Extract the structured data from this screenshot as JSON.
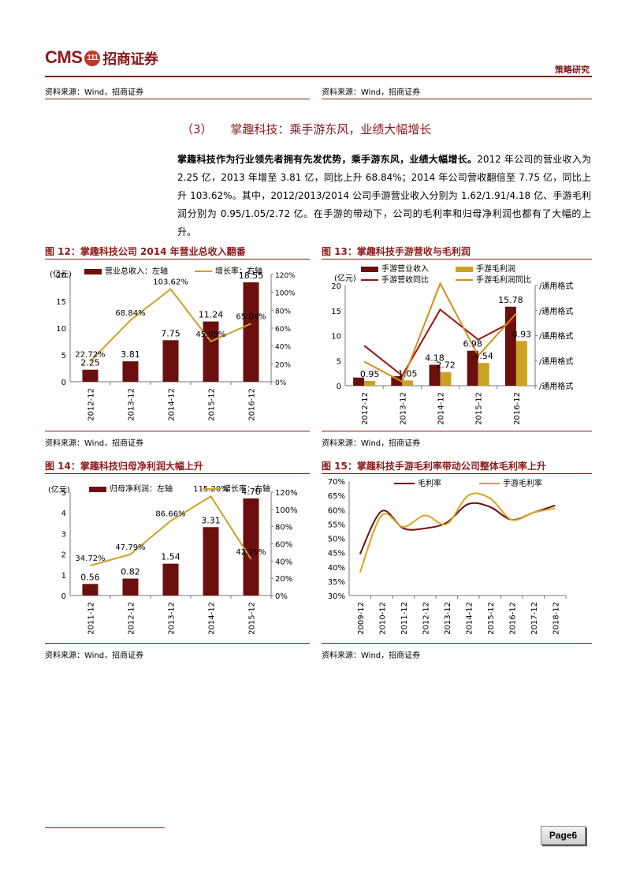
{
  "header": {
    "logo_text": "CMS",
    "logo_badge": "111",
    "logo_cn": "招商证券",
    "section": "策略研究"
  },
  "top_sources": {
    "left": "资料来源：Wind，招商证券",
    "right": "资料来源：Wind，招商证券"
  },
  "heading": {
    "num": "（3）",
    "text": "掌趣科技：乘手游东风，业绩大幅增长"
  },
  "paragraph": {
    "bold": "掌趣科技作为行业领先者拥有先发优势，乘手游东风，业绩大幅增长。",
    "body": "2012 年公司的营业收入为 2.25 亿，2013 年增至 3.81 亿，同比上升 68.84%；2014 年公司营收翻倍至 7.75 亿，同比上升 103.62%。其中，2012/2013/2014 公司手游营业收入分别为 1.62/1.91/4.18 亿、手游毛利润分别为 0.95/1.05/2.72 亿。在手游的带动下，公司的毛利率和归母净利润也都有了大幅的上升。"
  },
  "fig12": {
    "title": "图 12：掌趣科技公司 2014 年营业总收入翻番",
    "source": "资料来源：Wind，招商证券"
  },
  "fig13": {
    "title": "图 13：掌趣科技手游营收与毛利润",
    "source": "资料来源：Wind，招商证券"
  },
  "fig14": {
    "title": "图 14：掌趣科技归母净利润大幅上升",
    "source": "资料来源：Wind，招商证券"
  },
  "fig15": {
    "title": "图 15：掌趣科技手游毛利率带动公司整体毛利率上升",
    "source": "资料来源：Wind，招商证券"
  },
  "page": "Page6",
  "chart_data": [
    {
      "id": "fig12",
      "type": "bar",
      "categories": [
        "2012-12",
        "2013-12",
        "2014-12",
        "2015-12",
        "2016-12"
      ],
      "unit_label": "(亿元)",
      "series": [
        {
          "name": "营业总收入：左轴",
          "type": "bar",
          "axis": "left",
          "values": [
            2.25,
            3.81,
            7.75,
            11.24,
            18.55
          ],
          "labels": [
            "2.25",
            "3.81",
            "7.75",
            "11.24",
            "18.55"
          ],
          "color": "#6b0f0f"
        },
        {
          "name": "增长率：右轴",
          "type": "line",
          "axis": "right",
          "values": [
            22.72,
            68.84,
            103.62,
            45.05,
            65.04
          ],
          "labels": [
            "22.72%",
            "68.84%",
            "103.62%",
            "45.05%",
            "65.04%"
          ],
          "color": "#c9a227"
        }
      ],
      "ylim_left": [
        0,
        20
      ],
      "yticks_left": [
        "0",
        "5",
        "10",
        "15",
        "20"
      ],
      "ylim_right": [
        0,
        120
      ],
      "yticks_right": [
        "0%",
        "20%",
        "40%",
        "60%",
        "80%",
        "100%",
        "120%"
      ]
    },
    {
      "id": "fig13",
      "type": "bar",
      "categories": [
        "2012-12",
        "2013-12",
        "2014-12",
        "2015-12",
        "2016-12"
      ],
      "unit_label": "(亿元)",
      "series": [
        {
          "name": "手游营业收入",
          "type": "bar",
          "axis": "left",
          "values": [
            1.62,
            1.91,
            4.18,
            6.98,
            15.78
          ],
          "labels": [
            "",
            "",
            "4.18",
            "6.98",
            "15.78"
          ],
          "color": "#6b0f0f"
        },
        {
          "name": "手游毛利润",
          "type": "bar",
          "axis": "left",
          "values": [
            0.95,
            1.05,
            2.72,
            4.54,
            8.93
          ],
          "labels": [
            "0.95",
            "1.05",
            "2.72",
            "4.54",
            "8.93"
          ],
          "color": "#c9a227"
        },
        {
          "name": "手游营收同比",
          "type": "line",
          "axis": "right",
          "values": [
            2,
            0.5,
            3.8,
            2.3,
            3.3
          ],
          "color": "#a01010"
        },
        {
          "name": "手游毛利润同比",
          "type": "line",
          "axis": "right",
          "values": [
            1.2,
            0.2,
            5.1,
            1.5,
            3.6
          ],
          "color": "#d98c1a"
        }
      ],
      "ylim_left": [
        0,
        20
      ],
      "yticks_left": [
        "0",
        "5",
        "10",
        "15",
        "20"
      ],
      "ylim_right": [
        0,
        5
      ],
      "yticks_right": [
        "/通用格式",
        "/通用格式",
        "/通用格式",
        "/通用格式",
        "/通用格式"
      ]
    },
    {
      "id": "fig14",
      "type": "bar",
      "categories": [
        "2011-12",
        "2012-12",
        "2013-12",
        "2014-12",
        "2015-12"
      ],
      "unit_label": "(亿元)",
      "series": [
        {
          "name": "归母净利润：左轴",
          "type": "bar",
          "axis": "left",
          "values": [
            0.56,
            0.82,
            1.54,
            3.31,
            4.7
          ],
          "labels": [
            "0.56",
            "0.82",
            "1.54",
            "3.31",
            "4.70"
          ],
          "color": "#6b0f0f"
        },
        {
          "name": "增长率：右轴",
          "type": "line",
          "axis": "right",
          "values": [
            34.72,
            47.79,
            86.66,
            115.2,
            42.29
          ],
          "labels": [
            "34.72%",
            "47.79%",
            "86.66%",
            "115.20%",
            "42.29%"
          ],
          "color": "#c9a227"
        }
      ],
      "ylim_left": [
        0,
        5
      ],
      "yticks_left": [
        "0",
        "1",
        "2",
        "3",
        "4",
        "5"
      ],
      "ylim_right": [
        0,
        120
      ],
      "yticks_right": [
        "0%",
        "20%",
        "40%",
        "60%",
        "80%",
        "100%",
        "120%"
      ]
    },
    {
      "id": "fig15",
      "type": "line",
      "categories": [
        "2009-12",
        "2010-12",
        "2011-12",
        "2012-12",
        "2013-12",
        "2014-12",
        "2015-12",
        "2016-12",
        "2017-12",
        "2018-12"
      ],
      "series": [
        {
          "name": "毛利率",
          "values": [
            44.5,
            59.5,
            53.5,
            53.5,
            55.5,
            62,
            61,
            56.5,
            59,
            61.5
          ],
          "color": "#6b0f0f"
        },
        {
          "name": "手游毛利率",
          "values": [
            38,
            58,
            54,
            58,
            55,
            65,
            64,
            56.5,
            59,
            60.5
          ],
          "color": "#d9a521"
        }
      ],
      "ylim": [
        30,
        70
      ],
      "yticks": [
        "30%",
        "35%",
        "40%",
        "45%",
        "50%",
        "55%",
        "60%",
        "65%",
        "70%"
      ]
    }
  ]
}
